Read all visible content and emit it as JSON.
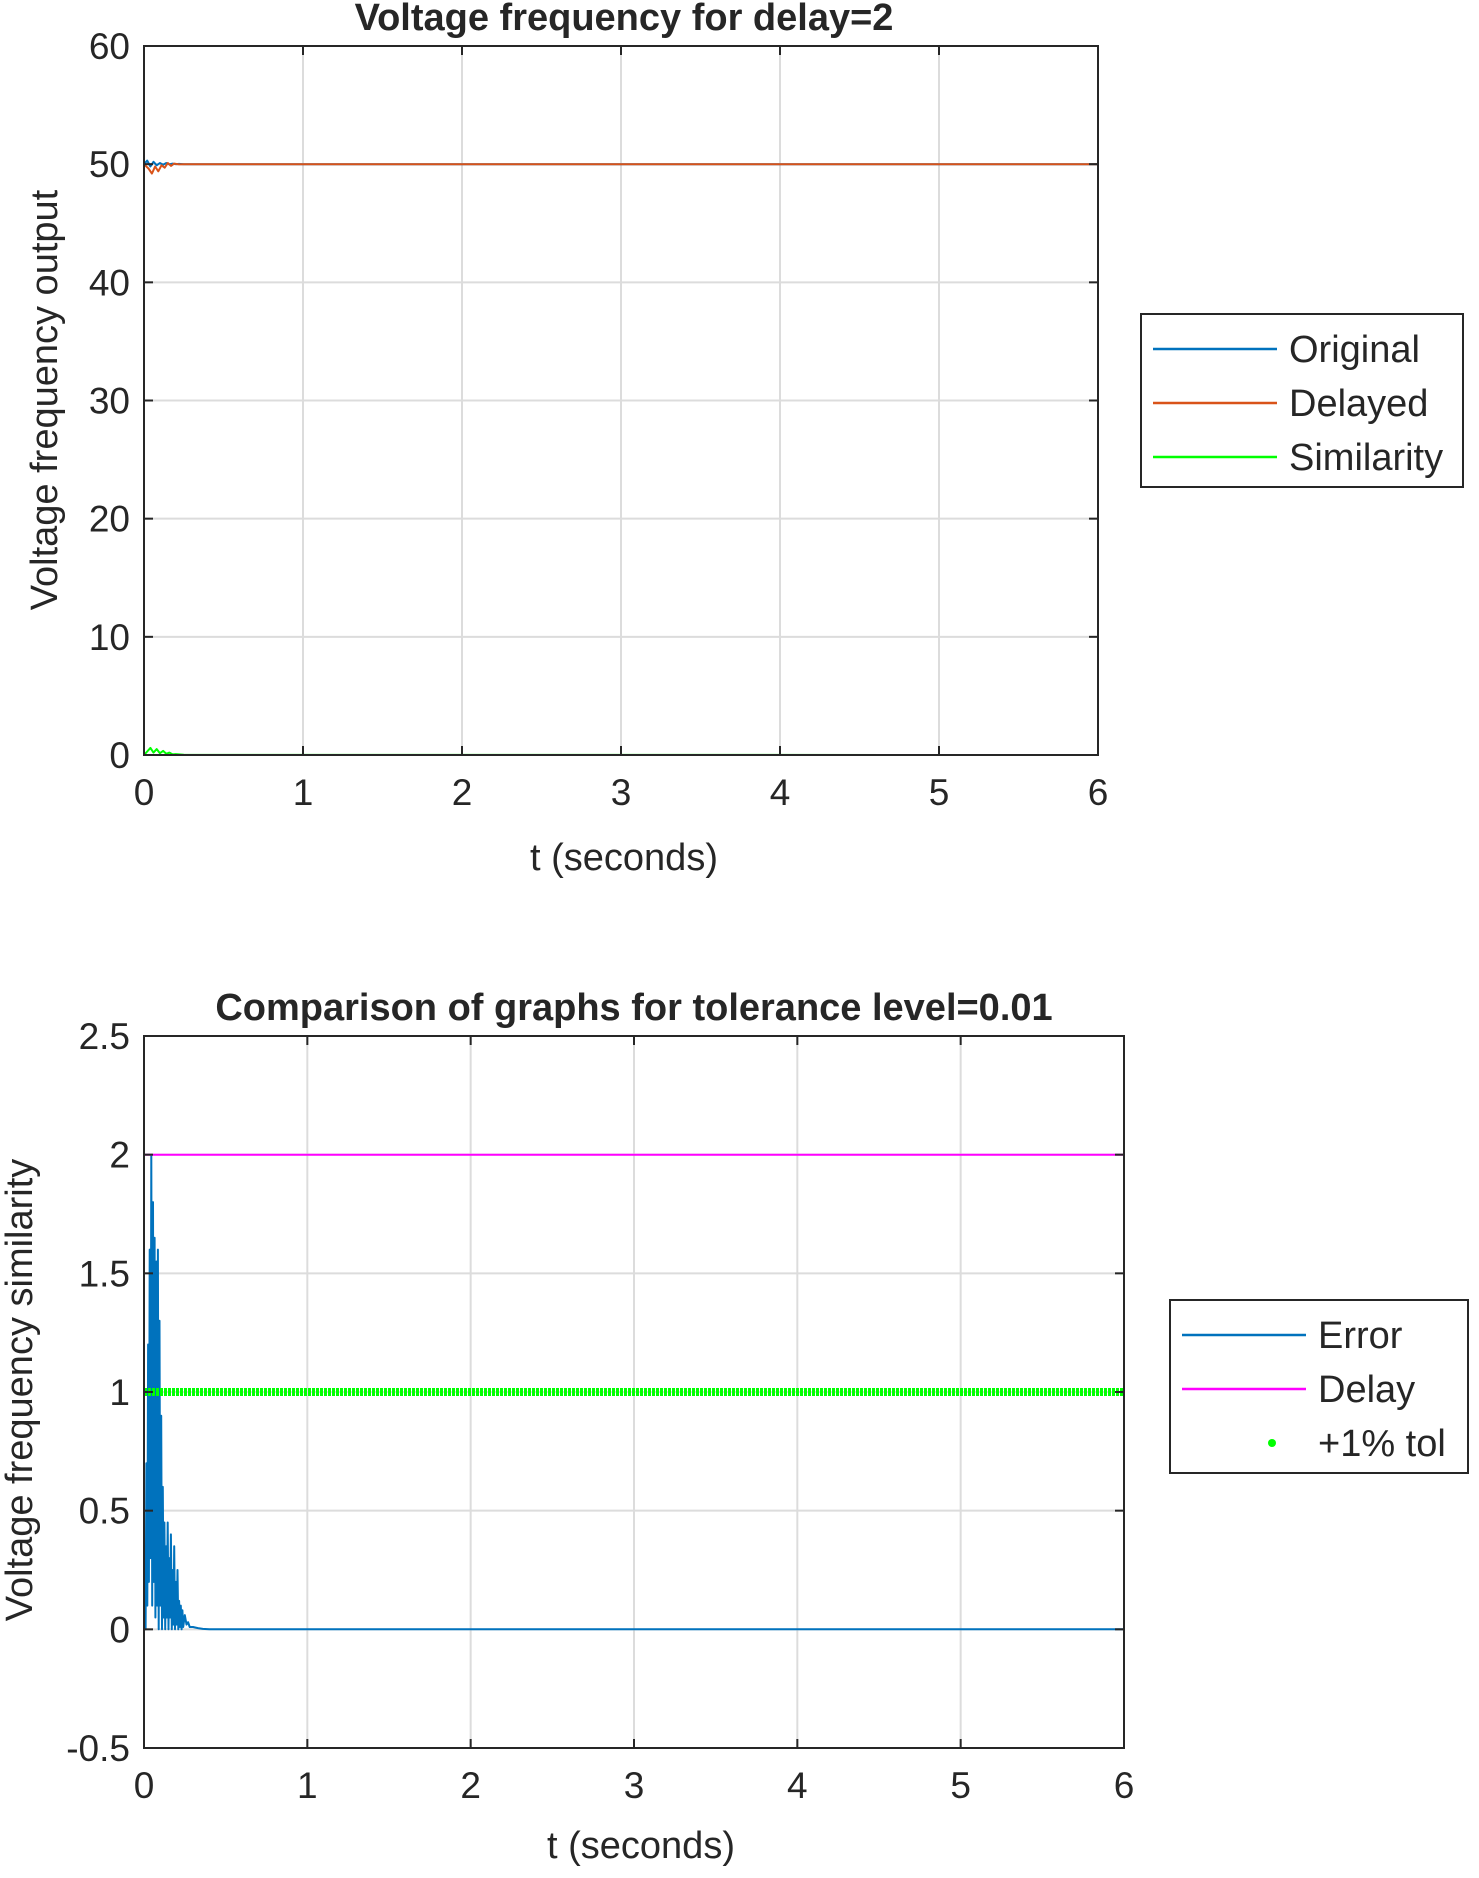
{
  "chart_data": [
    {
      "type": "line",
      "title": "Voltage frequency for delay=2",
      "xlabel": "t (seconds)",
      "ylabel": "Voltage frequency output",
      "xlim": [
        0,
        6
      ],
      "ylim": [
        0,
        60
      ],
      "xticks": [
        "0",
        "1",
        "2",
        "3",
        "4",
        "5",
        "6"
      ],
      "yticks": [
        "0",
        "10",
        "20",
        "30",
        "40",
        "50",
        "60"
      ],
      "grid": true,
      "legend_position": "outside-right",
      "series": [
        {
          "name": "Original",
          "color": "#0072BD",
          "style": "line",
          "x": [
            0,
            0.02,
            0.04,
            0.06,
            0.08,
            0.1,
            0.12,
            0.14,
            0.16,
            0.18,
            0.2,
            0.22,
            0.25,
            6
          ],
          "y": [
            50,
            50.3,
            49.8,
            50.2,
            49.9,
            50.1,
            49.95,
            50.1,
            49.98,
            50.05,
            50.0,
            50.02,
            50,
            50
          ]
        },
        {
          "name": "Delayed",
          "color": "#D95319",
          "style": "line",
          "x": [
            0,
            0.03,
            0.05,
            0.07,
            0.09,
            0.11,
            0.13,
            0.15,
            0.17,
            0.19,
            0.22,
            0.25,
            6
          ],
          "y": [
            50,
            49.6,
            49.2,
            49.8,
            49.4,
            49.9,
            49.7,
            50.1,
            49.85,
            50.05,
            49.98,
            50,
            50
          ]
        },
        {
          "name": "Similarity",
          "color": "#00FF00",
          "style": "line",
          "x": [
            0,
            0.02,
            0.04,
            0.06,
            0.08,
            0.1,
            0.12,
            0.14,
            0.16,
            0.18,
            0.2,
            0.25,
            6
          ],
          "y": [
            0,
            0.3,
            0.6,
            0.2,
            0.5,
            0.15,
            0.35,
            0.1,
            0.2,
            0.05,
            0.08,
            0.02,
            0
          ]
        }
      ]
    },
    {
      "type": "line",
      "title": "Comparison of graphs for tolerance level=0.01",
      "xlabel": "t (seconds)",
      "ylabel": "Voltage frequency similarity",
      "xlim": [
        0,
        6
      ],
      "ylim": [
        -0.5,
        2.5
      ],
      "xticks": [
        "0",
        "1",
        "2",
        "3",
        "4",
        "5",
        "6"
      ],
      "yticks": [
        "-0.5",
        "0",
        "0.5",
        "1",
        "1.5",
        "2",
        "2.5"
      ],
      "grid": true,
      "legend_position": "outside-right",
      "series": [
        {
          "name": "Error",
          "color": "#0072BD",
          "style": "line",
          "x": [
            0,
            0.01,
            0.015,
            0.02,
            0.025,
            0.03,
            0.035,
            0.04,
            0.045,
            0.05,
            0.055,
            0.06,
            0.065,
            0.07,
            0.075,
            0.08,
            0.085,
            0.09,
            0.095,
            0.1,
            0.105,
            0.11,
            0.115,
            0.12,
            0.125,
            0.13,
            0.135,
            0.14,
            0.145,
            0.15,
            0.155,
            0.16,
            0.165,
            0.17,
            0.175,
            0.18,
            0.185,
            0.19,
            0.195,
            0.2,
            0.205,
            0.21,
            0.215,
            0.22,
            0.225,
            0.23,
            0.235,
            0.24,
            0.25,
            0.26,
            0.27,
            0.28,
            0.3,
            0.33,
            0.36,
            0.4,
            6
          ],
          "y": [
            0,
            0,
            0.7,
            0.1,
            1.2,
            0.2,
            1.6,
            0.3,
            2.0,
            0.1,
            1.8,
            0.2,
            1.65,
            0.05,
            1.55,
            0.1,
            1.6,
            0.0,
            1.3,
            0.1,
            0.9,
            0.0,
            0.6,
            0.05,
            0.45,
            0.0,
            0.35,
            0.05,
            0.45,
            0.0,
            0.3,
            0.05,
            0.4,
            0.0,
            0.25,
            0.02,
            0.35,
            0.0,
            0.2,
            0.02,
            0.25,
            0.0,
            0.12,
            0.01,
            0.1,
            0.0,
            0.08,
            0.01,
            0.06,
            0.02,
            0.03,
            0.01,
            0.01,
            0.005,
            0.002,
            0,
            0
          ]
        },
        {
          "name": "Delay",
          "color": "#FF00FF",
          "style": "line",
          "x": [
            0,
            6
          ],
          "y": [
            2,
            2
          ]
        },
        {
          "name": "+1% tol",
          "color": "#00FF00",
          "style": "dots",
          "x": [
            0,
            6
          ],
          "y": [
            1,
            1
          ]
        }
      ]
    }
  ]
}
